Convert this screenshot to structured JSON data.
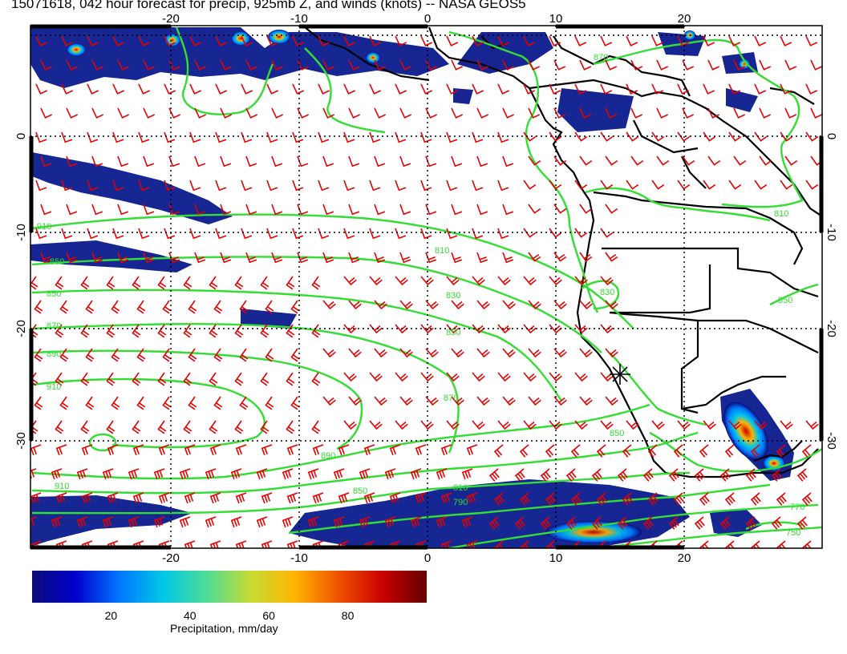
{
  "title": "15071618, 042 hour forecast for precip, 925mb Z, and winds (knots) -- NASA GEOS5",
  "map": {
    "lon_range": [
      -30,
      31
    ],
    "lat_range": [
      -40,
      10
    ],
    "lon_ticks": [
      "-20",
      "-10",
      "0",
      "10",
      "20"
    ],
    "lat_ticks": [
      "0",
      "-10",
      "-20",
      "-30"
    ],
    "contour_labels": [
      "910",
      "850",
      "870",
      "890",
      "910",
      "810",
      "830",
      "850",
      "870",
      "890",
      "910",
      "850",
      "810",
      "790",
      "770",
      "750",
      "850",
      "870",
      "830",
      "850",
      "810",
      "850"
    ],
    "colors": {
      "contour": "#33dd33",
      "wind_barb": "#e60000",
      "coast": "#000000"
    },
    "marker": "asterisk"
  },
  "colorbar": {
    "ticks": [
      "20",
      "40",
      "60",
      "80"
    ],
    "tick_values": [
      20,
      40,
      60,
      80
    ],
    "range": [
      0,
      100
    ],
    "label": "Precipitation, mm/day",
    "colors": [
      "#0a0a78",
      "#0000cd",
      "#0078ff",
      "#00c8e6",
      "#50dc96",
      "#c8dc32",
      "#ffb400",
      "#f05000",
      "#c80000",
      "#640000"
    ]
  }
}
